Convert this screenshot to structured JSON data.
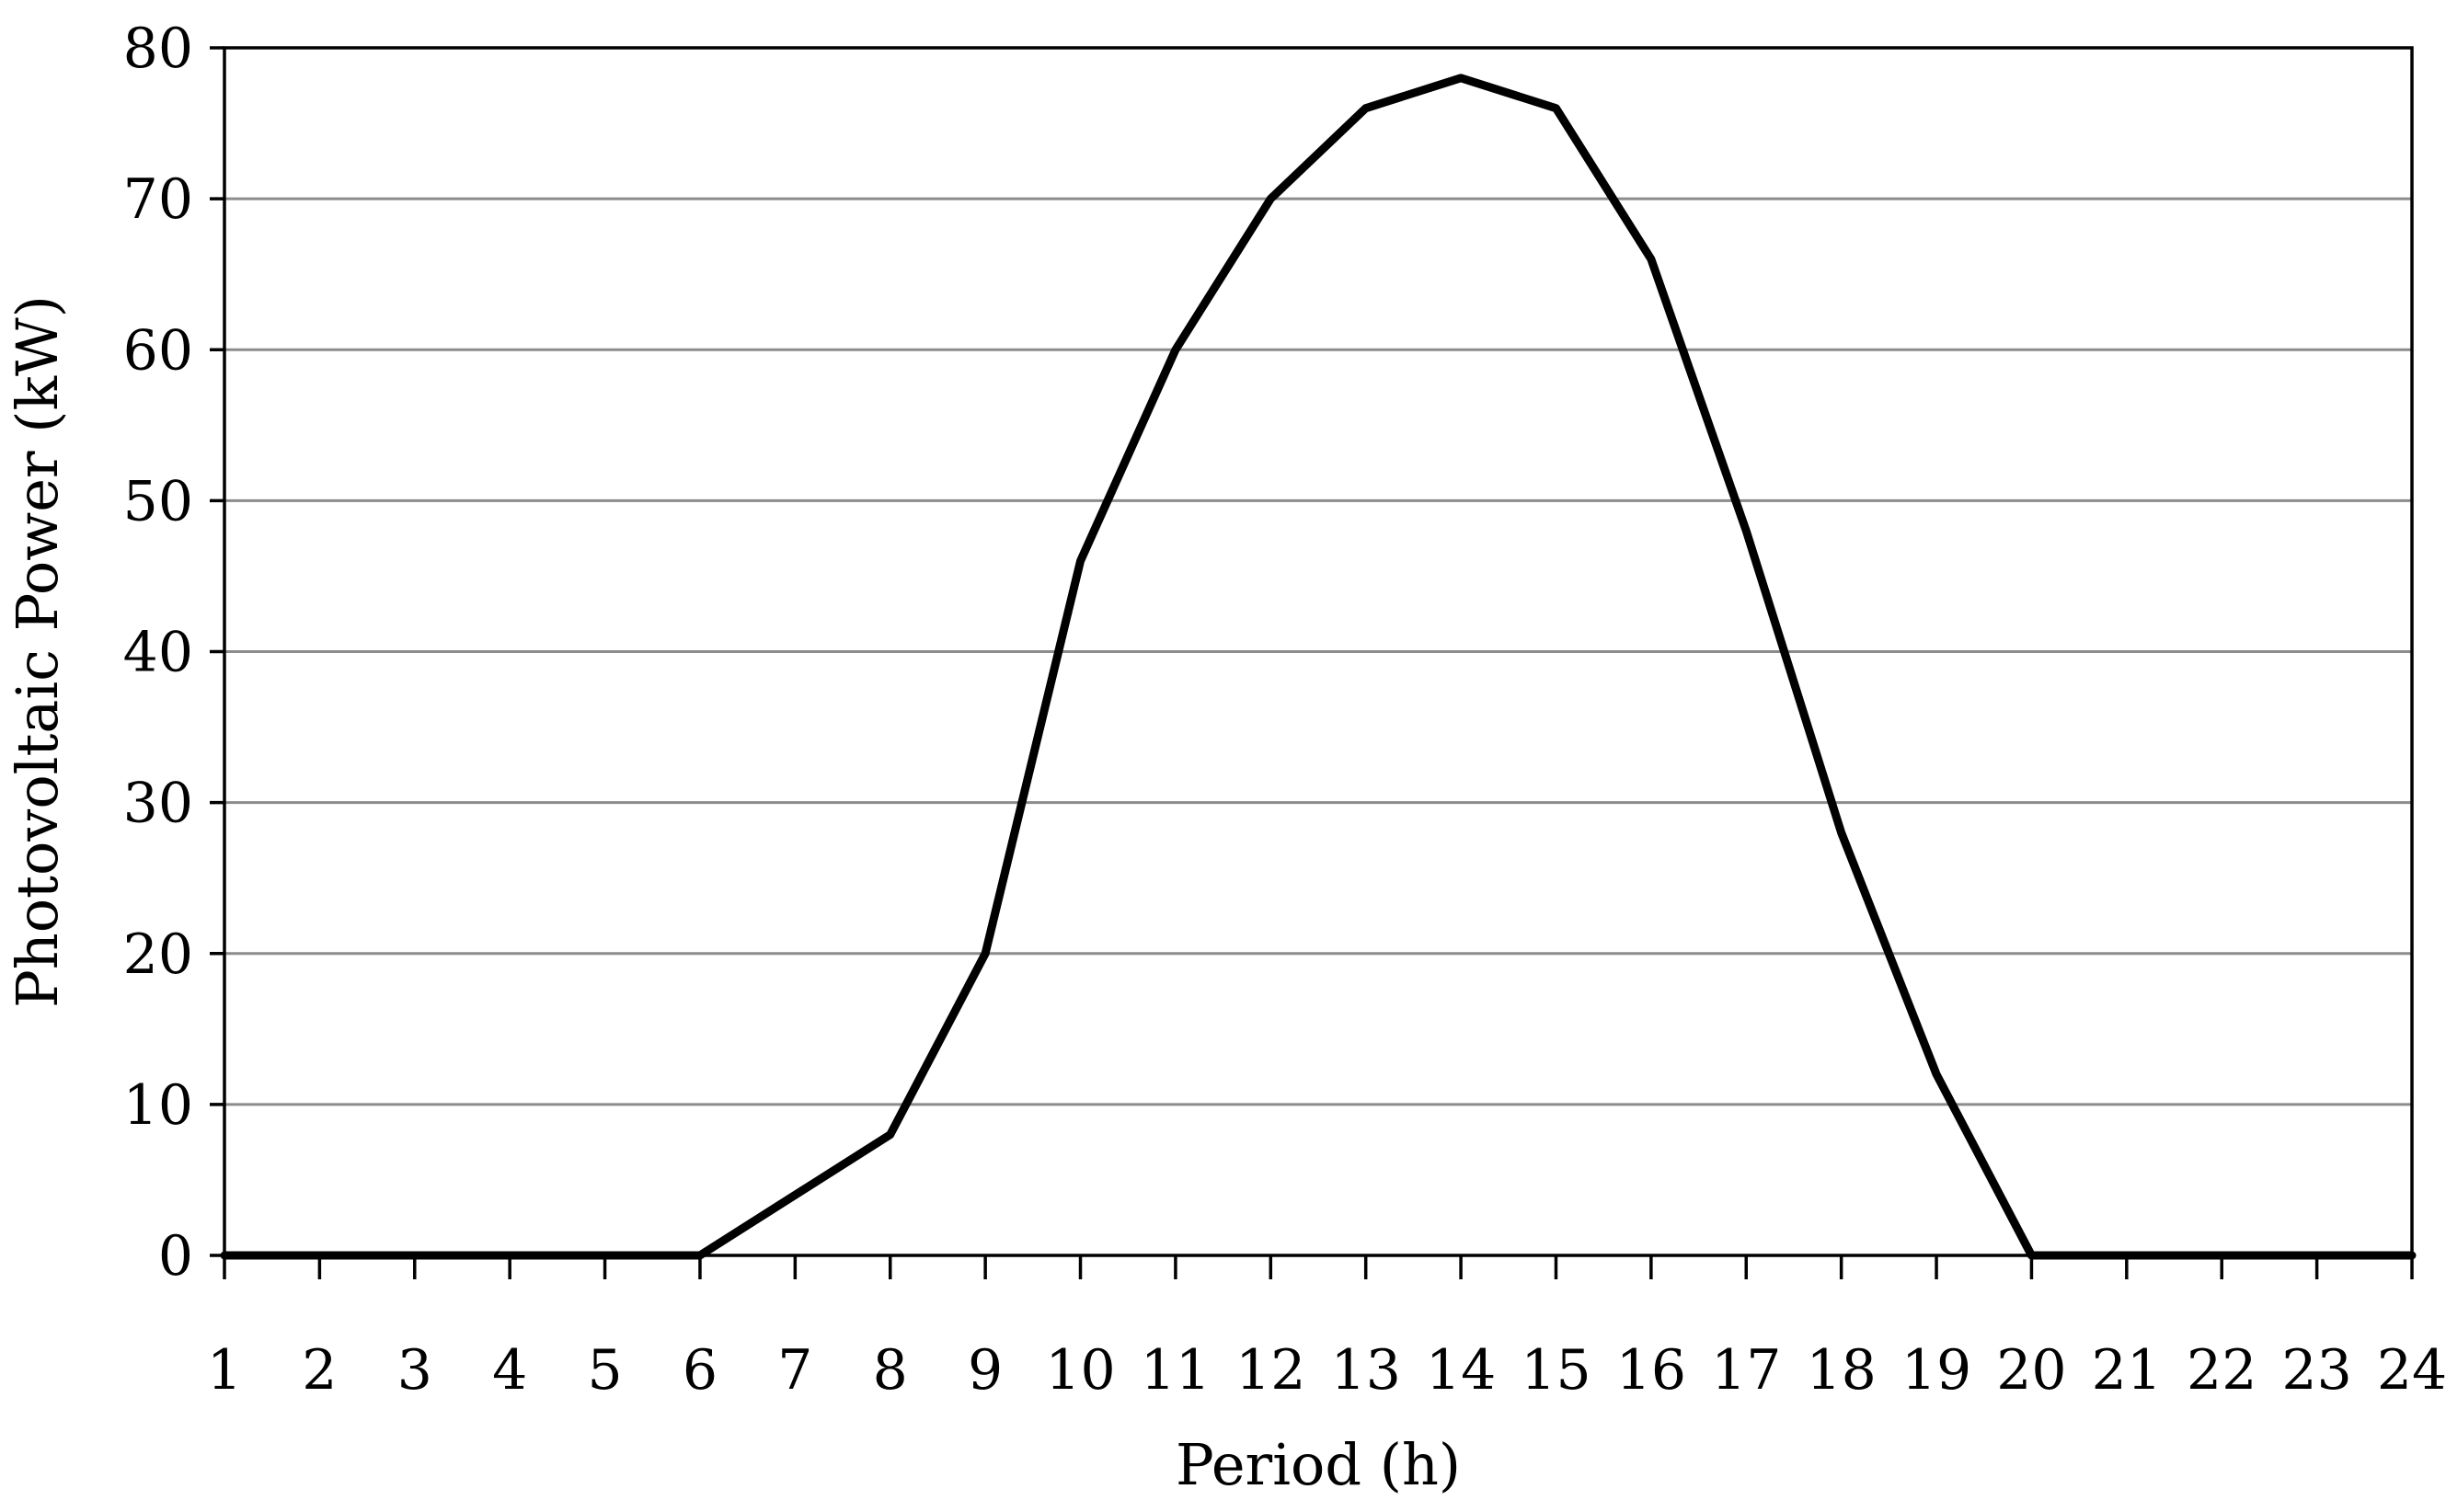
{
  "chart_data": {
    "type": "line",
    "title": "",
    "xlabel": "Period (h)",
    "ylabel": "Photovoltaic Power (kW)",
    "x": [
      1,
      2,
      3,
      4,
      5,
      6,
      7,
      8,
      9,
      10,
      11,
      12,
      13,
      14,
      15,
      16,
      17,
      18,
      19,
      20,
      21,
      22,
      23,
      24
    ],
    "x_tick_labels": [
      "1",
      "2",
      "3",
      "4",
      "5",
      "6",
      "7",
      "8",
      "9",
      "10",
      "11",
      "12",
      "13",
      "14",
      "15",
      "16",
      "17",
      "18",
      "19",
      "20",
      "21",
      "22",
      "23",
      "24"
    ],
    "y_ticks": [
      0,
      10,
      20,
      30,
      40,
      50,
      60,
      70,
      80
    ],
    "y_tick_labels": [
      "0",
      "10",
      "20",
      "30",
      "40",
      "50",
      "60",
      "70",
      "80"
    ],
    "ylim": [
      0,
      80
    ],
    "xlim": [
      1,
      24
    ],
    "grid": "horizontal",
    "legend": "none",
    "series": [
      {
        "values": [
          0,
          0,
          0,
          0,
          0,
          0,
          4,
          8,
          20,
          46,
          60,
          70,
          76,
          78,
          76,
          66,
          48,
          28,
          12,
          0,
          0,
          0,
          0,
          0
        ],
        "color": "#000000"
      }
    ]
  }
}
